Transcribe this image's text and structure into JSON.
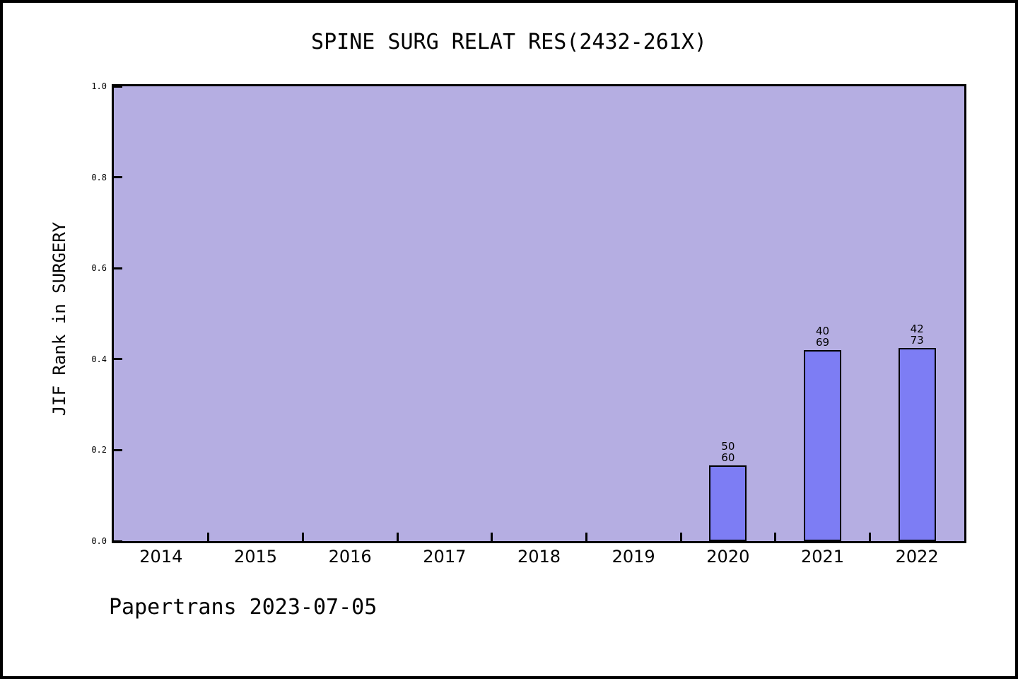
{
  "figure": {
    "title": "SPINE SURG RELAT RES(2432-261X)",
    "footer": "Papertrans 2023-07-05"
  },
  "colors": {
    "background": "#ffffff",
    "frame_border": "#000000",
    "plot_background": "#b5aee2",
    "bar_fill": "#7d7df4",
    "bar_border": "#000000",
    "text": "#000000"
  },
  "chart_data": {
    "type": "bar",
    "title": "SPINE SURG RELAT RES(2432-261X)",
    "xlabel": "",
    "ylabel": "JIF Rank in SURGERY",
    "ylim": [
      0.0,
      1.0
    ],
    "yticks": [
      "0.0",
      "0.2",
      "0.4",
      "0.6",
      "0.8",
      "1.0"
    ],
    "grid": false,
    "legend": "none",
    "categories": [
      "2014",
      "2015",
      "2016",
      "2017",
      "2018",
      "2019",
      "2020",
      "2021",
      "2022"
    ],
    "values": [
      null,
      null,
      null,
      null,
      null,
      null,
      0.1667,
      0.4203,
      0.4247
    ],
    "bars": [
      {
        "category": "2020",
        "value": 0.1667,
        "label_lines": [
          "50",
          "60"
        ]
      },
      {
        "category": "2021",
        "value": 0.4203,
        "label_lines": [
          "40",
          "69"
        ]
      },
      {
        "category": "2022",
        "value": 0.4247,
        "label_lines": [
          "42",
          "73"
        ]
      }
    ]
  }
}
